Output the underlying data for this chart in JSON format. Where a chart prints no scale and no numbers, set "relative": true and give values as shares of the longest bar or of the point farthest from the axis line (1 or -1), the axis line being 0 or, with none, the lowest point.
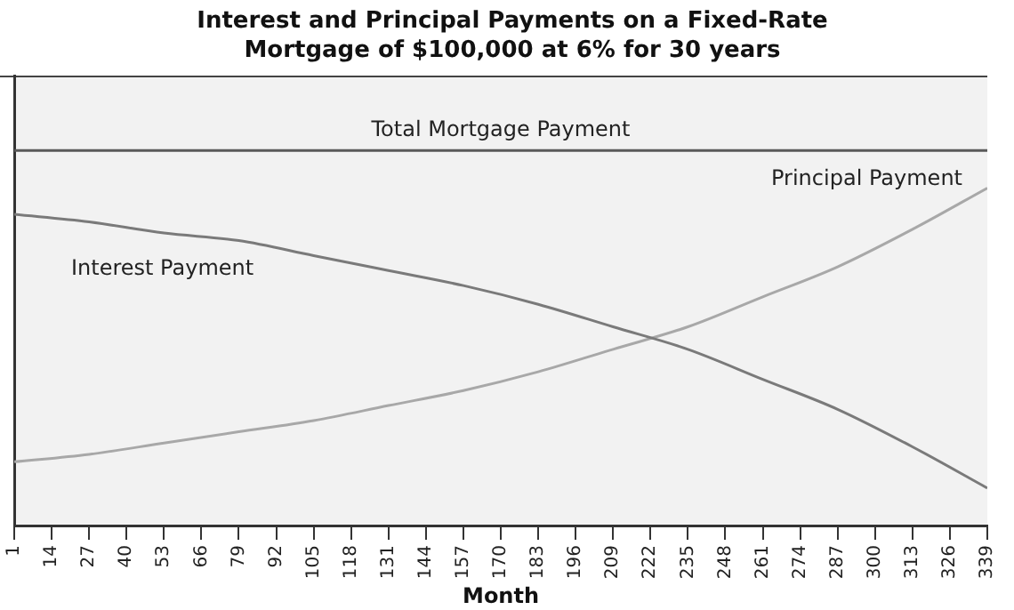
{
  "chart_data": {
    "type": "line",
    "title": "Interest and Principal Payments on a Fixed-Rate\nMortgage of $100,000 at 6% for 30 years",
    "xlabel": "Month",
    "relative": true,
    "x": [
      1,
      27,
      53,
      79,
      105,
      131,
      157,
      183,
      209,
      235,
      261,
      287,
      313,
      339
    ],
    "xlim": [
      1,
      339
    ],
    "xticks": [
      1,
      14,
      27,
      40,
      53,
      66,
      79,
      92,
      105,
      118,
      131,
      144,
      157,
      170,
      183,
      196,
      209,
      222,
      235,
      248,
      261,
      274,
      287,
      300,
      313,
      326,
      339
    ],
    "series": [
      {
        "name": "Total Mortgage Payment",
        "color": "#5a5a5a",
        "values": [
          1,
          1,
          1,
          1,
          1,
          1,
          1,
          1,
          1,
          1,
          1,
          1,
          1,
          1
        ]
      },
      {
        "name": "Interest Payment",
        "color": "#7a7a7a",
        "values": [
          0.83,
          0.81,
          0.78,
          0.76,
          0.72,
          0.68,
          0.64,
          0.59,
          0.53,
          0.47,
          0.39,
          0.31,
          0.21,
          0.1
        ]
      },
      {
        "name": "Principal Payment",
        "color": "#a8a8a8",
        "values": [
          0.17,
          0.19,
          0.22,
          0.25,
          0.28,
          0.32,
          0.36,
          0.41,
          0.47,
          0.53,
          0.61,
          0.69,
          0.79,
          0.9
        ]
      }
    ],
    "legend": false,
    "grid": false,
    "marker": "none",
    "line_style": "solid"
  }
}
